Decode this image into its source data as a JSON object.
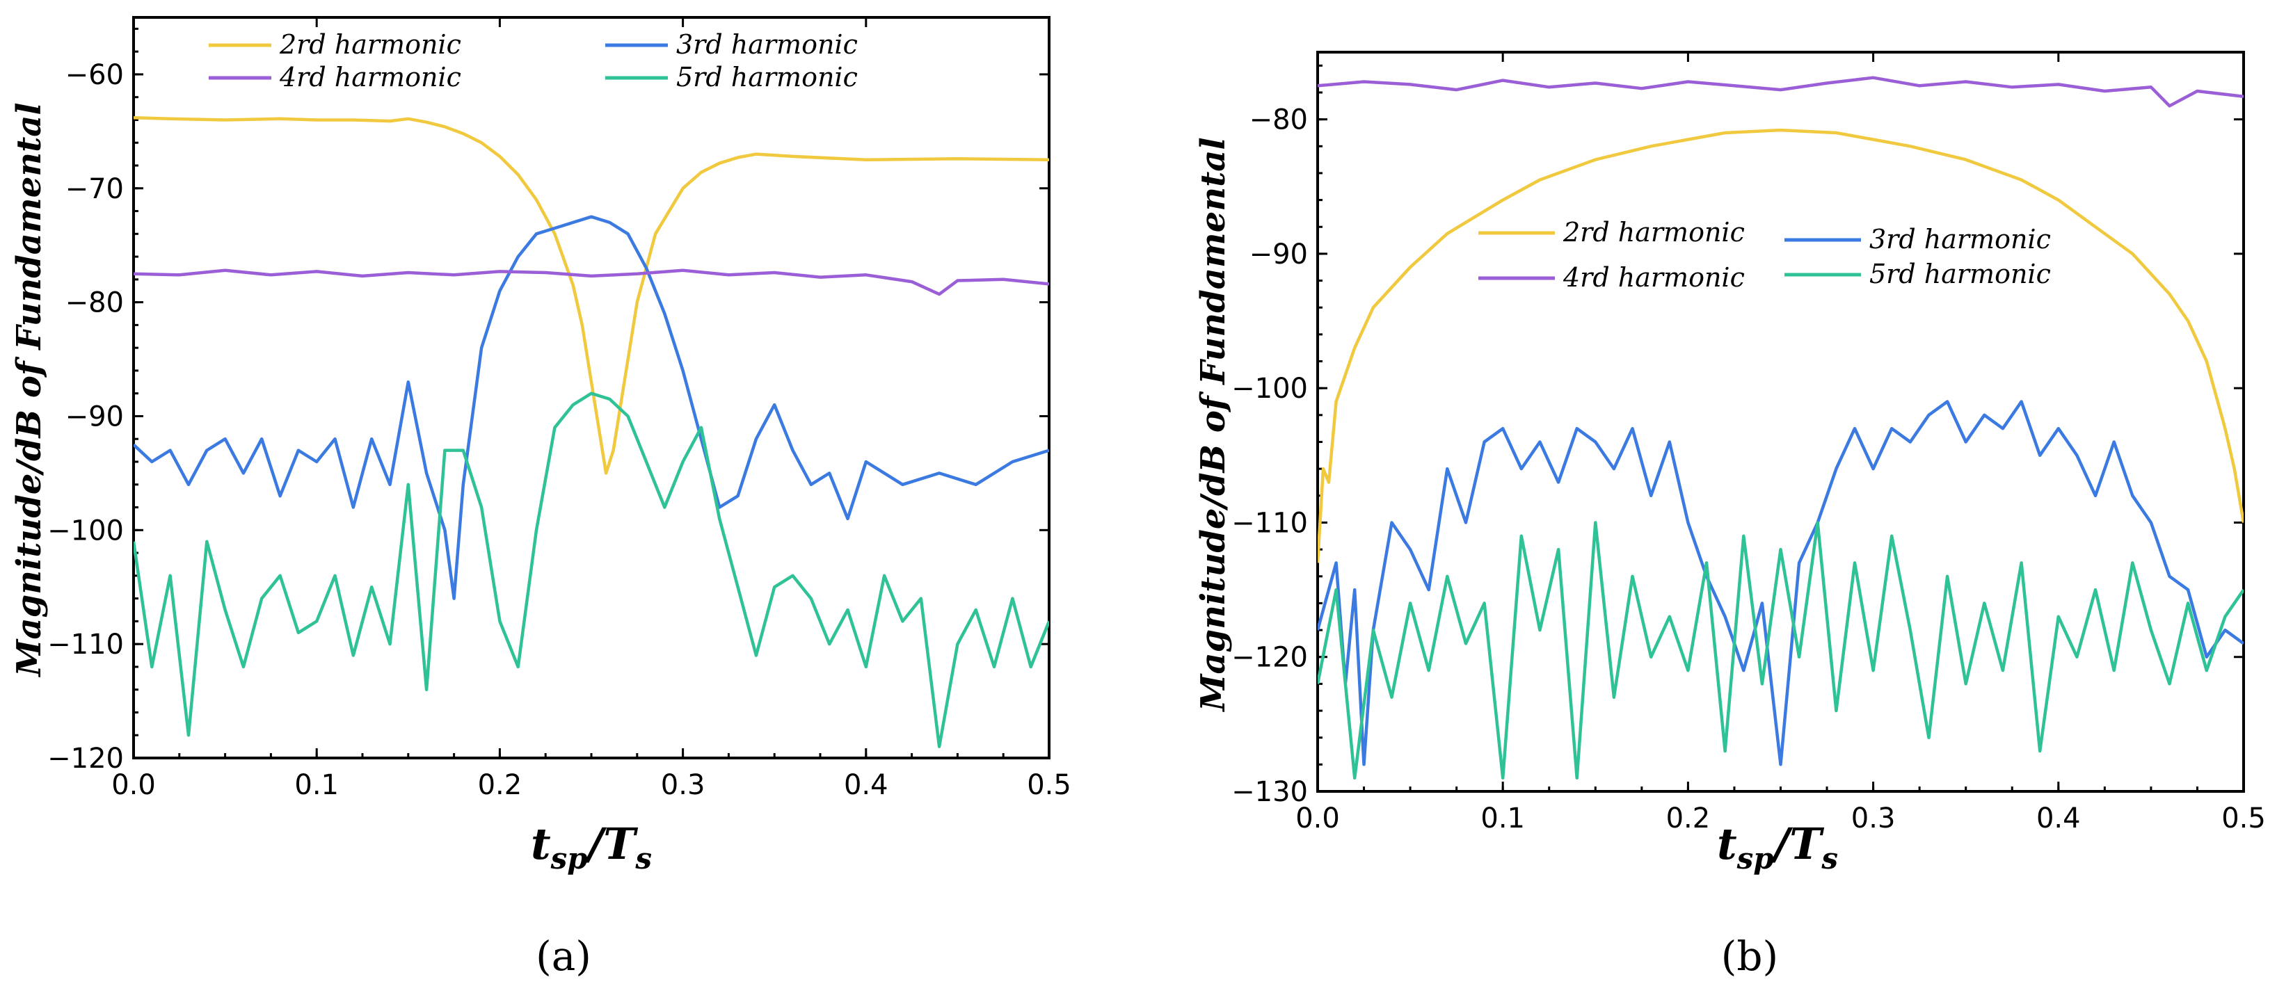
{
  "colors": {
    "h2": "#f0c93e",
    "h3": "#3b7ae0",
    "h4": "#9a5ed6",
    "h5": "#2fc296"
  },
  "chart_data": [
    {
      "type": "line",
      "panel_label": "(a)",
      "xlabel": "tsp/Ts",
      "xlabel_main": "t",
      "xlabel_sub1": "sp",
      "xlabel_mid": "/T",
      "xlabel_sub2": "s",
      "ylabel": "Magnitude/dB of Fundamental",
      "xlim": [
        0,
        0.5
      ],
      "ylim": [
        -120,
        -55
      ],
      "xticks": [
        "0.0",
        "0.1",
        "0.2",
        "0.3",
        "0.4",
        "0.5"
      ],
      "yticks": [
        "-60",
        "-70",
        "-80",
        "-90",
        "-100",
        "-110",
        "-120"
      ],
      "legend_position": "top",
      "legend": [
        "2rd harmonic",
        "3rd harmonic",
        "4rd harmonic",
        "5rd harmonic"
      ],
      "series": [
        {
          "name": "2rd harmonic",
          "key": "h2",
          "x": [
            0,
            0.02,
            0.05,
            0.08,
            0.1,
            0.12,
            0.14,
            0.15,
            0.16,
            0.17,
            0.18,
            0.19,
            0.2,
            0.21,
            0.22,
            0.23,
            0.24,
            0.245,
            0.25,
            0.255,
            0.258,
            0.262,
            0.268,
            0.275,
            0.285,
            0.3,
            0.31,
            0.32,
            0.33,
            0.34,
            0.36,
            0.4,
            0.45,
            0.5
          ],
          "values": [
            -63.8,
            -63.9,
            -64.0,
            -63.9,
            -64.0,
            -64.0,
            -64.1,
            -63.9,
            -64.2,
            -64.6,
            -65.2,
            -66.0,
            -67.2,
            -68.8,
            -71,
            -74,
            -78.5,
            -82,
            -87,
            -92,
            -95,
            -93,
            -87,
            -80,
            -74,
            -70,
            -68.6,
            -67.8,
            -67.3,
            -67.0,
            -67.2,
            -67.5,
            -67.4,
            -67.5
          ]
        },
        {
          "name": "3rd harmonic",
          "key": "h3",
          "x": [
            0,
            0.01,
            0.02,
            0.03,
            0.04,
            0.05,
            0.06,
            0.07,
            0.08,
            0.09,
            0.1,
            0.11,
            0.12,
            0.13,
            0.14,
            0.15,
            0.16,
            0.17,
            0.175,
            0.18,
            0.19,
            0.2,
            0.21,
            0.22,
            0.23,
            0.24,
            0.25,
            0.26,
            0.27,
            0.28,
            0.29,
            0.3,
            0.31,
            0.32,
            0.33,
            0.34,
            0.35,
            0.36,
            0.37,
            0.38,
            0.39,
            0.4,
            0.42,
            0.44,
            0.46,
            0.48,
            0.5
          ],
          "values": [
            -92.5,
            -94,
            -93,
            -96,
            -93,
            -92,
            -95,
            -92,
            -97,
            -93,
            -94,
            -92,
            -98,
            -92,
            -96,
            -87,
            -95,
            -100,
            -106,
            -96,
            -84,
            -79,
            -76,
            -74,
            -73.5,
            -73,
            -72.5,
            -73,
            -74,
            -77,
            -81,
            -86,
            -92,
            -98,
            -97,
            -92,
            -89,
            -93,
            -96,
            -95,
            -99,
            -94,
            -96,
            -95,
            -96,
            -94,
            -93
          ]
        },
        {
          "name": "4rd harmonic",
          "key": "h4",
          "x": [
            0,
            0.025,
            0.05,
            0.075,
            0.1,
            0.125,
            0.15,
            0.175,
            0.2,
            0.225,
            0.25,
            0.275,
            0.3,
            0.325,
            0.35,
            0.375,
            0.4,
            0.425,
            0.44,
            0.45,
            0.475,
            0.5
          ],
          "values": [
            -77.5,
            -77.6,
            -77.2,
            -77.6,
            -77.3,
            -77.7,
            -77.4,
            -77.6,
            -77.3,
            -77.4,
            -77.7,
            -77.5,
            -77.2,
            -77.6,
            -77.4,
            -77.8,
            -77.6,
            -78.2,
            -79.3,
            -78.1,
            -78.0,
            -78.4
          ]
        },
        {
          "name": "5rd harmonic",
          "key": "h5",
          "x": [
            0,
            0.01,
            0.02,
            0.03,
            0.04,
            0.05,
            0.06,
            0.07,
            0.08,
            0.09,
            0.1,
            0.11,
            0.12,
            0.13,
            0.14,
            0.15,
            0.16,
            0.17,
            0.18,
            0.19,
            0.2,
            0.21,
            0.22,
            0.23,
            0.24,
            0.25,
            0.26,
            0.27,
            0.28,
            0.29,
            0.3,
            0.31,
            0.32,
            0.33,
            0.34,
            0.35,
            0.36,
            0.37,
            0.38,
            0.39,
            0.4,
            0.41,
            0.42,
            0.43,
            0.44,
            0.45,
            0.46,
            0.47,
            0.48,
            0.49,
            0.5
          ],
          "values": [
            -101,
            -112,
            -104,
            -118,
            -101,
            -107,
            -112,
            -106,
            -104,
            -109,
            -108,
            -104,
            -111,
            -105,
            -110,
            -96,
            -114,
            -93,
            -93,
            -98,
            -108,
            -112,
            -100,
            -91,
            -89,
            -88,
            -88.5,
            -90,
            -94,
            -98,
            -94,
            -91,
            -99,
            -105,
            -111,
            -105,
            -104,
            -106,
            -110,
            -107,
            -112,
            -104,
            -108,
            -106,
            -119,
            -110,
            -107,
            -112,
            -106,
            -112,
            -108
          ]
        }
      ]
    },
    {
      "type": "line",
      "panel_label": "(b)",
      "xlabel": "tsp/Ts",
      "xlabel_main": "t",
      "xlabel_sub1": "sp",
      "xlabel_mid": "/T",
      "xlabel_sub2": "s",
      "ylabel": "Magnitude/dB of Fundamental",
      "xlim": [
        0,
        0.5
      ],
      "ylim": [
        -130,
        -75
      ],
      "xticks": [
        "0.0",
        "0.1",
        "0.2",
        "0.3",
        "0.4",
        "0.5"
      ],
      "yticks": [
        "-80",
        "-90",
        "-100",
        "-110",
        "-120",
        "-130"
      ],
      "legend_position": "center",
      "legend": [
        "2rd harmonic",
        "3rd harmonic",
        "4rd harmonic",
        "5rd harmonic"
      ],
      "series": [
        {
          "name": "2rd harmonic",
          "key": "h2",
          "x": [
            0,
            0.003,
            0.006,
            0.01,
            0.02,
            0.03,
            0.05,
            0.07,
            0.1,
            0.12,
            0.15,
            0.18,
            0.2,
            0.22,
            0.25,
            0.28,
            0.3,
            0.32,
            0.35,
            0.38,
            0.4,
            0.42,
            0.44,
            0.46,
            0.47,
            0.48,
            0.49,
            0.495,
            0.5
          ],
          "values": [
            -113,
            -106,
            -107,
            -101,
            -97,
            -94,
            -91,
            -88.5,
            -86,
            -84.5,
            -83,
            -82,
            -81.5,
            -81,
            -80.8,
            -81,
            -81.5,
            -82,
            -83,
            -84.5,
            -86,
            -88,
            -90,
            -93,
            -95,
            -98,
            -103,
            -106,
            -110
          ]
        },
        {
          "name": "3rd harmonic",
          "key": "h3",
          "x": [
            0,
            0.01,
            0.015,
            0.02,
            0.025,
            0.03,
            0.04,
            0.05,
            0.06,
            0.07,
            0.08,
            0.09,
            0.1,
            0.11,
            0.12,
            0.13,
            0.14,
            0.15,
            0.16,
            0.17,
            0.18,
            0.19,
            0.2,
            0.21,
            0.22,
            0.23,
            0.24,
            0.25,
            0.26,
            0.27,
            0.28,
            0.29,
            0.3,
            0.31,
            0.32,
            0.33,
            0.34,
            0.35,
            0.36,
            0.37,
            0.38,
            0.39,
            0.4,
            0.41,
            0.42,
            0.43,
            0.44,
            0.45,
            0.46,
            0.47,
            0.48,
            0.49,
            0.5
          ],
          "values": [
            -118,
            -113,
            -122,
            -115,
            -128,
            -118,
            -110,
            -112,
            -115,
            -106,
            -110,
            -104,
            -103,
            -106,
            -104,
            -107,
            -103,
            -104,
            -106,
            -103,
            -108,
            -104,
            -110,
            -114,
            -117,
            -121,
            -116,
            -128,
            -113,
            -110,
            -106,
            -103,
            -106,
            -103,
            -104,
            -102,
            -101,
            -104,
            -102,
            -103,
            -101,
            -105,
            -103,
            -105,
            -108,
            -104,
            -108,
            -110,
            -114,
            -115,
            -120,
            -118,
            -119
          ]
        },
        {
          "name": "4rd harmonic",
          "key": "h4",
          "x": [
            0,
            0.025,
            0.05,
            0.075,
            0.1,
            0.125,
            0.15,
            0.175,
            0.2,
            0.225,
            0.25,
            0.275,
            0.3,
            0.325,
            0.35,
            0.375,
            0.4,
            0.425,
            0.45,
            0.46,
            0.475,
            0.5
          ],
          "values": [
            -77.5,
            -77.2,
            -77.4,
            -77.8,
            -77.1,
            -77.6,
            -77.3,
            -77.7,
            -77.2,
            -77.5,
            -77.8,
            -77.3,
            -76.9,
            -77.5,
            -77.2,
            -77.6,
            -77.4,
            -77.9,
            -77.6,
            -79.0,
            -77.9,
            -78.3
          ]
        },
        {
          "name": "5rd harmonic",
          "key": "h5",
          "x": [
            0,
            0.01,
            0.02,
            0.03,
            0.04,
            0.05,
            0.06,
            0.07,
            0.08,
            0.09,
            0.1,
            0.11,
            0.12,
            0.13,
            0.14,
            0.15,
            0.16,
            0.17,
            0.18,
            0.19,
            0.2,
            0.21,
            0.22,
            0.23,
            0.24,
            0.25,
            0.26,
            0.27,
            0.28,
            0.29,
            0.3,
            0.31,
            0.32,
            0.33,
            0.34,
            0.35,
            0.36,
            0.37,
            0.38,
            0.39,
            0.4,
            0.41,
            0.42,
            0.43,
            0.44,
            0.45,
            0.46,
            0.47,
            0.48,
            0.49,
            0.5
          ],
          "values": [
            -122,
            -115,
            -129,
            -118,
            -123,
            -116,
            -121,
            -114,
            -119,
            -116,
            -129,
            -111,
            -118,
            -112,
            -129,
            -110,
            -123,
            -114,
            -120,
            -117,
            -121,
            -113,
            -127,
            -111,
            -122,
            -112,
            -120,
            -110,
            -124,
            -113,
            -121,
            -111,
            -118,
            -126,
            -114,
            -122,
            -116,
            -121,
            -113,
            -127,
            -117,
            -120,
            -115,
            -121,
            -113,
            -118,
            -122,
            -116,
            -121,
            -117,
            -115
          ]
        }
      ]
    }
  ]
}
